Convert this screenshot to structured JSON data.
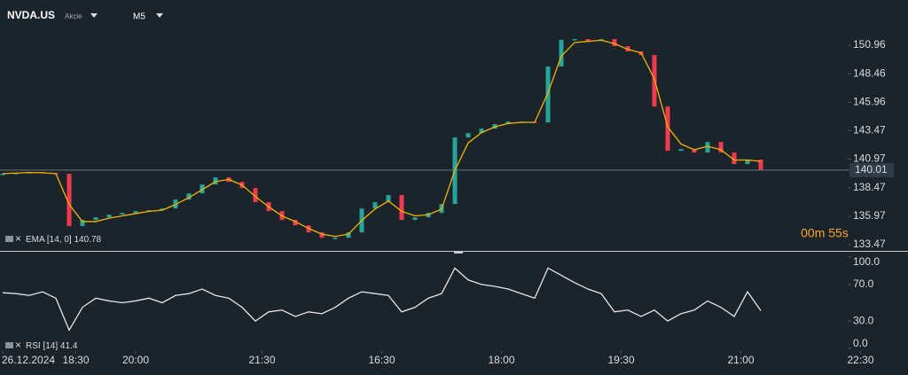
{
  "header": {
    "symbol": "NVDA.US",
    "asset_type": "Akcie",
    "timeframe": "M5"
  },
  "countdown": "00m 55s",
  "chart_data": [
    {
      "type": "candlestick",
      "x": [
        0,
        2,
        4,
        6,
        8,
        10,
        12,
        14,
        16,
        18,
        20,
        22,
        24,
        26,
        28,
        30,
        32,
        34,
        36,
        38,
        40,
        42,
        44,
        46,
        48,
        50,
        52,
        54,
        56,
        58,
        60,
        62,
        64,
        66,
        68,
        70,
        72,
        74,
        76,
        78,
        80,
        82,
        84,
        86,
        88,
        90,
        92,
        94,
        96,
        98,
        100,
        102,
        104,
        106,
        108,
        110,
        112,
        114
      ],
      "xlim": [
        0,
        132
      ],
      "ylim": [
        132.93,
        154.54
      ],
      "yticks": [
        133.47,
        135.97,
        138.47,
        140.97,
        143.47,
        145.96,
        148.46,
        150.96
      ],
      "series": [
        {
          "up_color": "#26a69a",
          "down_color": "#ef3b4f",
          "values": [
            139.69,
            139.76,
            139.84,
            139.76,
            139.69,
            135.1,
            135.64,
            135.87,
            136.11,
            136.26,
            136.42,
            136.5,
            136.65,
            137.43,
            137.97,
            138.75,
            139.37,
            138.98,
            138.44,
            137.2,
            136.42,
            135.64,
            135.17,
            134.55,
            134.08,
            134.08,
            134.55,
            136.65,
            137.2,
            137.82,
            135.64,
            135.87,
            136.26,
            137.04,
            142.87,
            143.26,
            143.65,
            144.04,
            144.27,
            144.27,
            144.19,
            149.09,
            151.43,
            151.5,
            151.35,
            151.5,
            150.88,
            150.42,
            150.1,
            145.59,
            141.71,
            141.86,
            141.55,
            142.48,
            141.55,
            140.54,
            140.93,
            140.01
          ]
        },
        {
          "name": "EMA [14, 0]",
          "color": "#f0b400",
          "values": [
            139.7,
            139.75,
            139.8,
            139.78,
            139.7,
            137.0,
            135.5,
            135.5,
            135.8,
            136.0,
            136.2,
            136.4,
            136.5,
            137.0,
            137.6,
            138.3,
            139.0,
            139.2,
            138.7,
            137.7,
            136.8,
            136.0,
            135.5,
            134.9,
            134.4,
            134.2,
            134.4,
            135.6,
            136.6,
            137.3,
            136.4,
            136.0,
            136.1,
            136.6,
            140.0,
            142.4,
            143.3,
            143.8,
            144.1,
            144.2,
            144.2,
            146.8,
            150.0,
            151.2,
            151.3,
            151.4,
            151.1,
            150.6,
            150.3,
            148.0,
            143.8,
            142.3,
            141.8,
            142.1,
            141.8,
            140.9,
            140.9,
            140.78
          ]
        }
      ]
    },
    {
      "type": "line",
      "x": [
        0,
        2,
        4,
        6,
        8,
        10,
        12,
        14,
        16,
        18,
        20,
        22,
        24,
        26,
        28,
        30,
        32,
        34,
        36,
        38,
        40,
        42,
        44,
        46,
        48,
        50,
        52,
        54,
        56,
        58,
        60,
        62,
        64,
        66,
        68,
        70,
        72,
        74,
        76,
        78,
        80,
        82,
        84,
        86,
        88,
        90,
        92,
        94,
        96,
        98,
        100,
        102,
        104,
        106,
        108,
        110,
        112,
        114
      ],
      "xlim": [
        0,
        132
      ],
      "xticks": [
        {
          "value": 0,
          "label": "26.12.2024"
        },
        {
          "value": 11,
          "label": "18:30"
        },
        {
          "value": 20,
          "label": "20:00"
        },
        {
          "value": 39,
          "label": "21:30"
        },
        {
          "value": 57,
          "label": "16:30"
        },
        {
          "value": 75,
          "label": "18:00"
        },
        {
          "value": 93,
          "label": "19:30"
        },
        {
          "value": 111,
          "label": "21:00"
        },
        {
          "value": 129,
          "label": "22:30"
        }
      ],
      "ylim": [
        0,
        100
      ],
      "yticks": [
        {
          "value": 0,
          "label": "0.0"
        },
        {
          "value": 30,
          "label": "30.0"
        },
        {
          "value": 70,
          "label": "70.0"
        },
        {
          "value": 100,
          "label": "100.0"
        }
      ],
      "series": [
        {
          "name": "RSI [14]",
          "color": "#e6e6e6",
          "values": [
            61,
            60,
            58,
            62,
            55,
            20,
            45,
            55,
            52,
            50,
            52,
            55,
            50,
            58,
            60,
            65,
            58,
            55,
            45,
            30,
            40,
            42,
            35,
            40,
            38,
            45,
            55,
            62,
            60,
            58,
            40,
            45,
            55,
            60,
            88,
            75,
            70,
            68,
            65,
            60,
            55,
            88,
            80,
            72,
            65,
            60,
            40,
            42,
            35,
            42,
            30,
            38,
            42,
            52,
            45,
            35,
            62,
            41.4
          ]
        }
      ]
    }
  ]
}
